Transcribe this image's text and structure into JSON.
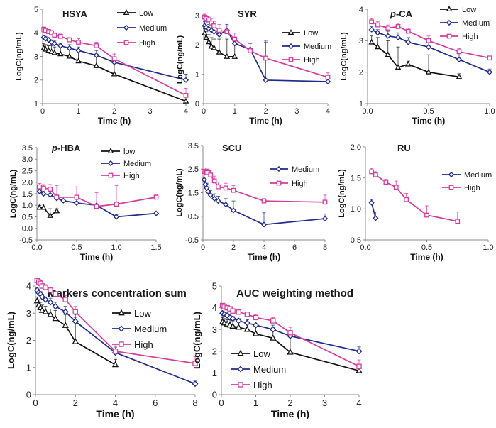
{
  "figure": {
    "colors": {
      "Low": "#111111",
      "Medium": "#1f2a8c",
      "High": "#d63a9d"
    },
    "markers": {
      "Low": "triangle",
      "Medium": "diamond",
      "High": "square"
    }
  },
  "chart_data": [
    {
      "id": "HSYA",
      "type": "line",
      "title": "HSYA",
      "title_prefix": "",
      "xlabel": "Time (h)",
      "ylabel": "LogC(ng/mL)",
      "xlim": [
        0,
        4
      ],
      "ylim": [
        1,
        5
      ],
      "xticks": [
        0,
        1,
        2,
        3,
        4
      ],
      "yticks": [
        1,
        2,
        3,
        4,
        5
      ],
      "legend": "top-right",
      "series": [
        {
          "name": "Low",
          "label": "Low",
          "x": [
            0.033,
            0.083,
            0.167,
            0.25,
            0.333,
            0.5,
            0.75,
            1,
            1.5,
            2,
            4
          ],
          "y": [
            3.35,
            3.3,
            3.25,
            3.2,
            3.15,
            3.1,
            3.0,
            2.8,
            2.6,
            2.25,
            1.1
          ],
          "err": [
            0.2,
            0.2,
            0.2,
            0.25,
            0.25,
            0.3,
            0.3,
            0.35,
            0.5,
            0.9,
            0.1
          ]
        },
        {
          "name": "Medium",
          "label": "Medium",
          "x": [
            0.033,
            0.083,
            0.167,
            0.25,
            0.333,
            0.5,
            0.75,
            1,
            1.5,
            2,
            4
          ],
          "y": [
            3.8,
            3.75,
            3.7,
            3.6,
            3.55,
            3.45,
            3.35,
            3.25,
            3.05,
            2.75,
            2.0
          ],
          "err": [
            0.1,
            0.1,
            0.1,
            0.1,
            0.1,
            0.1,
            0.15,
            0.15,
            0.2,
            0.2,
            0.25
          ]
        },
        {
          "name": "High",
          "label": "High",
          "x": [
            0.033,
            0.083,
            0.167,
            0.25,
            0.333,
            0.5,
            0.75,
            1,
            1.5,
            2,
            4
          ],
          "y": [
            4.15,
            4.1,
            4.05,
            4.0,
            3.9,
            3.85,
            3.7,
            3.6,
            3.45,
            2.9,
            1.35
          ],
          "err": [
            0.1,
            0.1,
            0.1,
            0.1,
            0.1,
            0.1,
            0.1,
            0.15,
            0.15,
            0.2,
            0.3
          ]
        }
      ]
    },
    {
      "id": "SYR",
      "type": "line",
      "title": "SYR",
      "title_prefix": "",
      "xlabel": "Time (h)",
      "ylabel": "LogC(ng/mL)",
      "xlim": [
        0,
        4
      ],
      "ylim": [
        0,
        3
      ],
      "xticks": [
        0,
        1,
        2,
        3,
        4
      ],
      "yticks": [
        0,
        1,
        2,
        3
      ],
      "legend": "top-right",
      "series": [
        {
          "name": "Low",
          "label": "Low",
          "x": [
            0.033,
            0.083,
            0.167,
            0.25,
            0.333,
            0.5,
            0.75,
            1
          ],
          "y": [
            2.4,
            2.25,
            2.1,
            1.95,
            1.9,
            1.75,
            1.6,
            1.6
          ],
          "err": [
            0.15,
            0.2,
            0.25,
            0.3,
            0.3,
            0.45,
            0.6,
            0.4
          ]
        },
        {
          "name": "Medium",
          "label": "Medium",
          "x": [
            0.033,
            0.083,
            0.167,
            0.25,
            0.333,
            0.5,
            0.75,
            1,
            1.5,
            2,
            4
          ],
          "y": [
            2.65,
            2.6,
            2.55,
            2.5,
            2.45,
            2.35,
            2.5,
            2.05,
            1.85,
            0.8,
            0.75
          ],
          "err": [
            0.15,
            0.15,
            0.15,
            0.2,
            0.2,
            0.2,
            0.2,
            0.2,
            0.2,
            1.3,
            0.1
          ]
        },
        {
          "name": "High",
          "label": "High",
          "x": [
            0.033,
            0.083,
            0.167,
            0.25,
            0.333,
            0.5,
            0.75,
            1,
            1.5,
            2,
            4
          ],
          "y": [
            2.95,
            2.9,
            2.85,
            2.75,
            2.65,
            2.5,
            2.45,
            2.2,
            1.8,
            1.55,
            0.9
          ],
          "err": [
            0.1,
            0.1,
            0.1,
            0.15,
            0.15,
            0.2,
            0.2,
            0.2,
            0.25,
            0.6,
            0.15
          ]
        }
      ]
    },
    {
      "id": "p-CA",
      "type": "line",
      "title": "-CA",
      "title_prefix": "p",
      "xlabel": "Time (h)",
      "ylabel": "LogC(ng/mL)",
      "xlim": [
        0,
        1
      ],
      "ylim": [
        1,
        4
      ],
      "xticks": [
        0,
        0.5,
        1
      ],
      "yticks": [
        1,
        2,
        3,
        4
      ],
      "legend": "top-right",
      "series": [
        {
          "name": "Low",
          "label": "Low",
          "x": [
            0.033,
            0.083,
            0.167,
            0.25,
            0.333,
            0.5,
            0.75
          ],
          "y": [
            2.95,
            2.8,
            2.55,
            2.15,
            2.25,
            2.0,
            1.85
          ],
          "err": [
            0.2,
            0.3,
            0.45,
            0.65,
            0.1,
            0.55,
            0.1
          ]
        },
        {
          "name": "Medium",
          "label": "Medium",
          "x": [
            0.033,
            0.083,
            0.167,
            0.25,
            0.333,
            0.5,
            0.75,
            1
          ],
          "y": [
            3.35,
            3.25,
            3.15,
            3.1,
            2.95,
            2.8,
            2.4,
            2.0
          ],
          "err": [
            0.1,
            0.1,
            0.15,
            0.15,
            0.15,
            0.2,
            0.2,
            0.1
          ]
        },
        {
          "name": "High",
          "label": "High",
          "x": [
            0.033,
            0.083,
            0.167,
            0.25,
            0.333,
            0.5,
            0.75,
            1
          ],
          "y": [
            3.6,
            3.5,
            3.4,
            3.45,
            3.3,
            3.0,
            2.65,
            2.45
          ],
          "err": [
            0.1,
            0.1,
            0.1,
            0.1,
            0.1,
            0.15,
            0.1,
            0.05
          ]
        }
      ]
    },
    {
      "id": "p-HBA",
      "type": "line",
      "title": "-HBA",
      "title_prefix": "p",
      "xlabel": "Time (h)",
      "ylabel": "LogC(ng/mL)",
      "xlim": [
        0,
        1.5
      ],
      "ylim": [
        -0.5,
        3.5
      ],
      "xticks": [
        0,
        0.5,
        1,
        1.5
      ],
      "yticks": [
        -0.5,
        0,
        0.5,
        1,
        1.5,
        2,
        2.5,
        3,
        3.5
      ],
      "legend": "top-right",
      "series": [
        {
          "name": "Low",
          "label": "low",
          "x": [
            0.033,
            0.083,
            0.167,
            0.25
          ],
          "y": [
            0.9,
            0.9,
            0.55,
            0.75
          ],
          "err": [
            0.1,
            0.15,
            0.3,
            0.1
          ]
        },
        {
          "name": "Medium",
          "label": "Medium",
          "x": [
            0.033,
            0.083,
            0.167,
            0.25,
            0.333,
            0.5,
            0.75,
            1,
            1.5
          ],
          "y": [
            1.6,
            1.5,
            1.45,
            1.3,
            1.2,
            1.1,
            1.0,
            0.5,
            0.65
          ],
          "err": [
            0.1,
            0.1,
            0.15,
            0.15,
            0.15,
            0.15,
            0.15,
            0.1,
            0.05
          ]
        },
        {
          "name": "High",
          "label": "High",
          "x": [
            0.033,
            0.083,
            0.167,
            0.25,
            0.5,
            0.75,
            1,
            1.5
          ],
          "y": [
            1.8,
            1.75,
            1.7,
            1.35,
            1.35,
            0.95,
            1.05,
            1.35
          ],
          "err": [
            0.15,
            0.15,
            0.2,
            0.5,
            0.45,
            0.6,
            0.8,
            0.1
          ]
        }
      ]
    },
    {
      "id": "SCU",
      "type": "line",
      "title": "SCU",
      "title_prefix": "",
      "xlabel": "Time (h)",
      "ylabel": "LogC(ng/mL)",
      "xlim": [
        0,
        8
      ],
      "ylim": [
        -0.5,
        3.5
      ],
      "xticks": [
        0,
        2,
        4,
        6,
        8
      ],
      "yticks": [
        -0.5,
        0.5,
        1.5,
        2.5,
        3.5
      ],
      "legend": "top-right",
      "series": [
        {
          "name": "Medium",
          "label": "Medium",
          "x": [
            0.083,
            0.167,
            0.25,
            0.333,
            0.5,
            0.75,
            1,
            1.5,
            2,
            4,
            8
          ],
          "y": [
            2.05,
            1.85,
            1.7,
            1.55,
            1.4,
            1.25,
            1.15,
            1.0,
            0.75,
            0.15,
            0.4
          ],
          "err": [
            0.2,
            0.2,
            0.2,
            0.2,
            0.2,
            0.2,
            0.2,
            0.25,
            0.4,
            0.5,
            0.2
          ]
        },
        {
          "name": "High",
          "label": "High",
          "x": [
            0.083,
            0.167,
            0.25,
            0.333,
            0.5,
            0.75,
            1,
            1.5,
            2,
            4,
            8
          ],
          "y": [
            2.4,
            2.4,
            2.35,
            2.35,
            2.25,
            2.0,
            1.75,
            1.7,
            1.6,
            1.15,
            1.1
          ],
          "err": [
            0.15,
            0.15,
            0.15,
            0.15,
            0.2,
            0.2,
            0.2,
            0.2,
            0.2,
            0.1,
            0.3
          ]
        }
      ]
    },
    {
      "id": "RU",
      "type": "line",
      "title": "RU",
      "title_prefix": "",
      "xlabel": "Time (h)",
      "ylabel": "LogC(ng/mL)",
      "xlim": [
        0,
        1
      ],
      "ylim": [
        0.5,
        2.0
      ],
      "xticks": [
        0,
        0.5,
        1
      ],
      "yticks": [
        0.5,
        1.0,
        1.5,
        2.0
      ],
      "legend": "top-right",
      "series": [
        {
          "name": "Medium",
          "label": "Medium",
          "x": [
            0.05,
            0.083
          ],
          "y": [
            1.1,
            0.85
          ],
          "err": [
            0.05,
            0.1
          ]
        },
        {
          "name": "High",
          "label": "High",
          "x": [
            0.05,
            0.083,
            0.167,
            0.25,
            0.333,
            0.5,
            0.75
          ],
          "y": [
            1.6,
            1.55,
            1.43,
            1.35,
            1.15,
            0.9,
            0.8
          ],
          "err": [
            0.05,
            0.05,
            0.05,
            0.1,
            0.1,
            0.15,
            0.15
          ]
        }
      ]
    },
    {
      "id": "MCS",
      "type": "line",
      "title": "Markers concentration sum",
      "title_prefix": "",
      "xlabel": "Time (h)",
      "ylabel": "LogC(ng/mL)",
      "xlim": [
        0,
        8
      ],
      "ylim": [
        0,
        4
      ],
      "xticks": [
        0,
        2,
        4,
        6,
        8
      ],
      "yticks": [
        0,
        1,
        2,
        3,
        4
      ],
      "legend": "top-right",
      "series": [
        {
          "name": "Low",
          "label": "Low",
          "x": [
            0.083,
            0.167,
            0.25,
            0.333,
            0.5,
            0.75,
            1,
            1.5,
            2,
            4
          ],
          "y": [
            3.45,
            3.3,
            3.2,
            3.1,
            3.05,
            2.95,
            2.8,
            2.55,
            1.95,
            1.1
          ],
          "err": [
            0.15,
            0.2,
            0.2,
            0.2,
            0.2,
            0.2,
            0.3,
            0.4,
            0.9,
            0.2
          ]
        },
        {
          "name": "Medium",
          "label": "Medium",
          "x": [
            0.083,
            0.167,
            0.25,
            0.333,
            0.5,
            0.75,
            1,
            1.5,
            2,
            4,
            8
          ],
          "y": [
            3.85,
            3.75,
            3.7,
            3.6,
            3.5,
            3.4,
            3.25,
            3.05,
            2.7,
            1.55,
            0.4
          ],
          "err": [
            0.1,
            0.1,
            0.1,
            0.1,
            0.1,
            0.15,
            0.15,
            0.2,
            0.25,
            0.2,
            0.1
          ]
        },
        {
          "name": "High",
          "label": "High",
          "x": [
            0.083,
            0.167,
            0.25,
            0.333,
            0.5,
            0.75,
            1,
            1.5,
            2,
            4,
            8
          ],
          "y": [
            4.2,
            4.15,
            4.1,
            4.0,
            3.95,
            3.85,
            3.7,
            3.5,
            3.05,
            1.6,
            1.15
          ],
          "err": [
            0.1,
            0.1,
            0.1,
            0.1,
            0.1,
            0.1,
            0.1,
            0.15,
            0.2,
            0.2,
            0.25
          ]
        }
      ]
    },
    {
      "id": "AUC",
      "type": "line",
      "title": "AUC weighting method",
      "title_prefix": "",
      "xlabel": "Time (h)",
      "ylabel": "LogC(ng/mL)",
      "xlim": [
        0,
        4
      ],
      "ylim": [
        0,
        5
      ],
      "xticks": [
        0,
        1,
        2,
        3,
        4
      ],
      "yticks": [
        0,
        1,
        2,
        3,
        4,
        5
      ],
      "legend": "bottom-left",
      "series": [
        {
          "name": "Low",
          "label": "Low",
          "x": [
            0.033,
            0.083,
            0.167,
            0.25,
            0.333,
            0.5,
            0.75,
            1,
            1.5,
            2,
            4
          ],
          "y": [
            3.35,
            3.3,
            3.25,
            3.2,
            3.15,
            3.1,
            3.0,
            2.8,
            2.6,
            1.95,
            1.1
          ],
          "err": [
            0.2,
            0.2,
            0.2,
            0.25,
            0.25,
            0.3,
            0.3,
            0.35,
            0.5,
            0.9,
            0.2
          ]
        },
        {
          "name": "Medium",
          "label": "Medium",
          "x": [
            0.033,
            0.083,
            0.167,
            0.25,
            0.333,
            0.5,
            0.75,
            1,
            1.5,
            2,
            4
          ],
          "y": [
            3.75,
            3.7,
            3.65,
            3.55,
            3.5,
            3.4,
            3.3,
            3.2,
            3.0,
            2.7,
            2.0
          ],
          "err": [
            0.1,
            0.1,
            0.1,
            0.1,
            0.1,
            0.1,
            0.15,
            0.15,
            0.2,
            0.2,
            0.2
          ]
        },
        {
          "name": "High",
          "label": "High",
          "x": [
            0.033,
            0.083,
            0.167,
            0.25,
            0.333,
            0.5,
            0.75,
            1,
            1.5,
            2,
            4
          ],
          "y": [
            4.1,
            4.05,
            4.0,
            3.95,
            3.85,
            3.8,
            3.7,
            3.55,
            3.4,
            2.85,
            1.3
          ],
          "err": [
            0.1,
            0.1,
            0.1,
            0.1,
            0.1,
            0.1,
            0.1,
            0.15,
            0.15,
            0.25,
            0.3
          ]
        }
      ]
    }
  ]
}
